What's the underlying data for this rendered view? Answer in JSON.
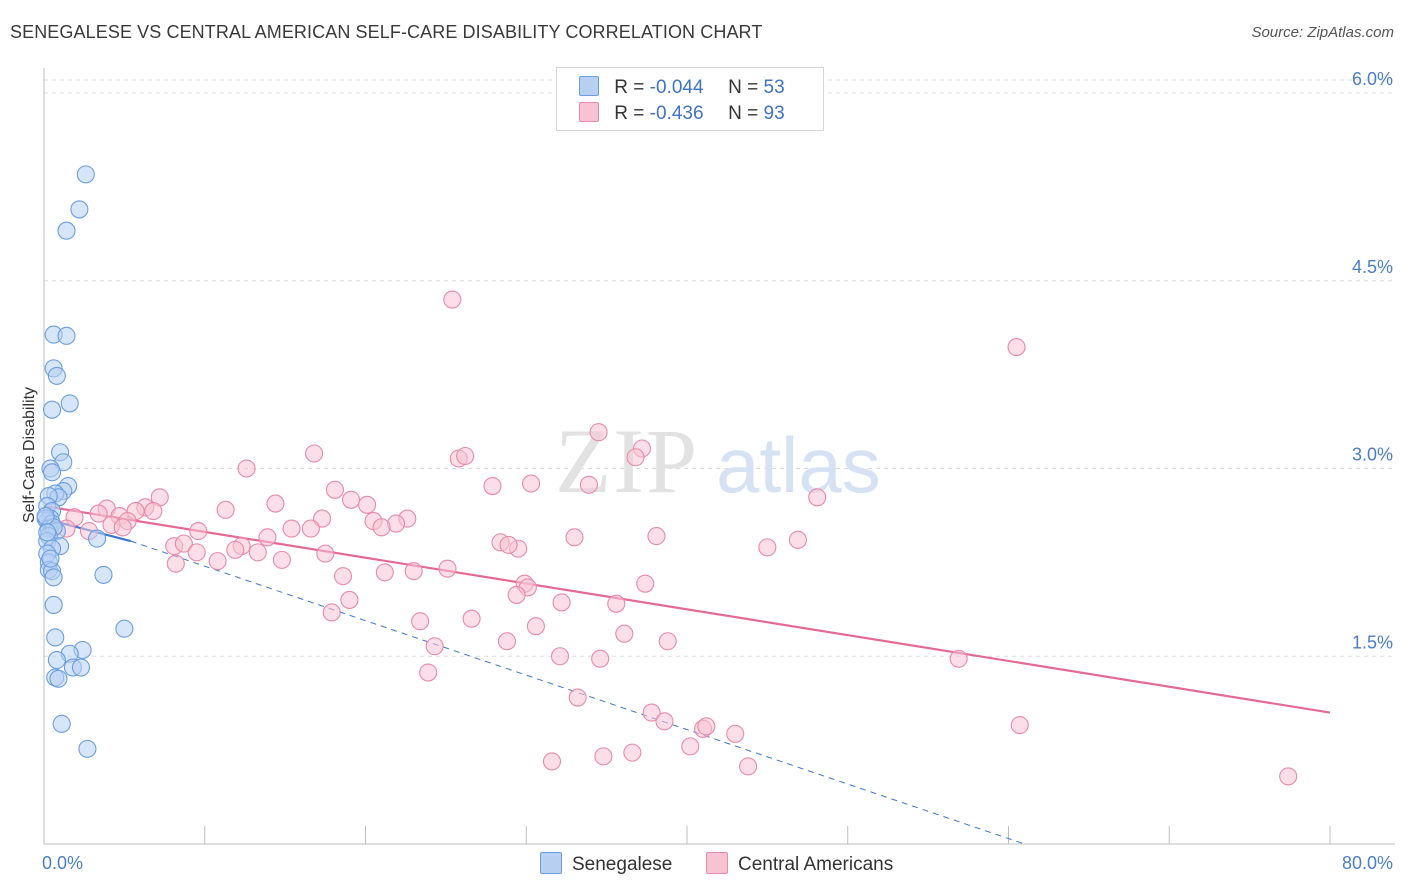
{
  "header": {
    "title": "SENEGALESE VS CENTRAL AMERICAN SELF-CARE DISABILITY CORRELATION CHART",
    "source": "Source: ZipAtlas.com"
  },
  "legend": {
    "rows": [
      {
        "r_label": "R =",
        "r_value": "-0.044",
        "n_label": "N =",
        "n_value": "53"
      },
      {
        "r_label": "R =",
        "r_value": "-0.436",
        "n_label": "N =",
        "n_value": "93"
      }
    ]
  },
  "watermark": {
    "part1": "ZIP",
    "part2": "atlas"
  },
  "colors": {
    "senegalese_fill": "#b7d0f2",
    "senegalese_stroke": "#6a9ee0",
    "senegalese_line": "#3a78d6",
    "central_fill": "#f7c3d3",
    "central_stroke": "#e98aa8",
    "central_line": "#e46a96",
    "grid": "#dcdcdc",
    "axis_text": "#4a7fc8"
  },
  "chart_data": {
    "type": "scatter",
    "ylabel": "Self-Care Disability",
    "xlim": [
      0,
      80
    ],
    "ylim": [
      0,
      6.2
    ],
    "x_tick_labels": [
      "0.0%",
      "80.0%"
    ],
    "y_ticks": [
      {
        "value": 1.5,
        "label": "1.5%"
      },
      {
        "value": 3.0,
        "label": "3.0%"
      },
      {
        "value": 4.5,
        "label": "4.5%"
      },
      {
        "value": 6.0,
        "label": "6.0%"
      }
    ],
    "grid": true,
    "series": [
      {
        "name": "Senegalese",
        "trend": {
          "x": [
            0,
            5.4
          ],
          "y": [
            2.6,
            2.42
          ]
        },
        "trend_ext": {
          "x": [
            5.4,
            61
          ],
          "y": [
            2.42,
            0
          ]
        },
        "points": [
          [
            2.6,
            5.35
          ],
          [
            2.2,
            5.07
          ],
          [
            1.4,
            4.9
          ],
          [
            0.6,
            4.07
          ],
          [
            1.4,
            4.06
          ],
          [
            0.6,
            3.8
          ],
          [
            0.8,
            3.74
          ],
          [
            1.6,
            3.52
          ],
          [
            0.5,
            3.47
          ],
          [
            1.0,
            3.13
          ],
          [
            1.2,
            3.05
          ],
          [
            0.4,
            3.0
          ],
          [
            0.5,
            2.97
          ],
          [
            1.5,
            2.86
          ],
          [
            1.2,
            2.82
          ],
          [
            0.7,
            2.8
          ],
          [
            0.9,
            2.77
          ],
          [
            0.3,
            2.78
          ],
          [
            0.2,
            2.7
          ],
          [
            0.5,
            2.66
          ],
          [
            0.4,
            2.6
          ],
          [
            0.2,
            2.58
          ],
          [
            0.1,
            2.6
          ],
          [
            0.5,
            2.56
          ],
          [
            0.3,
            2.52
          ],
          [
            0.8,
            2.5
          ],
          [
            0.6,
            2.53
          ],
          [
            0.3,
            2.46
          ],
          [
            3.3,
            2.44
          ],
          [
            0.2,
            2.42
          ],
          [
            1.0,
            2.38
          ],
          [
            0.5,
            2.36
          ],
          [
            0.2,
            2.32
          ],
          [
            0.3,
            2.25
          ],
          [
            0.3,
            2.19
          ],
          [
            0.5,
            2.18
          ],
          [
            0.6,
            2.13
          ],
          [
            3.7,
            2.15
          ],
          [
            0.6,
            1.91
          ],
          [
            5.0,
            1.72
          ],
          [
            0.7,
            1.65
          ],
          [
            2.4,
            1.55
          ],
          [
            1.6,
            1.52
          ],
          [
            0.8,
            1.47
          ],
          [
            1.8,
            1.41
          ],
          [
            2.3,
            1.41
          ],
          [
            0.7,
            1.33
          ],
          [
            0.9,
            1.32
          ],
          [
            1.1,
            0.96
          ],
          [
            2.7,
            0.76
          ],
          [
            0.1,
            2.62
          ],
          [
            0.2,
            2.49
          ],
          [
            0.4,
            2.28
          ]
        ]
      },
      {
        "name": "Central Americans",
        "trend": {
          "x": [
            0,
            80
          ],
          "y": [
            2.7,
            1.05
          ]
        },
        "points": [
          [
            25.4,
            4.35
          ],
          [
            60.5,
            3.97
          ],
          [
            34.5,
            3.29
          ],
          [
            37.2,
            3.16
          ],
          [
            16.8,
            3.12
          ],
          [
            25.8,
            3.08
          ],
          [
            26.2,
            3.1
          ],
          [
            36.8,
            3.09
          ],
          [
            12.6,
            3.0
          ],
          [
            30.3,
            2.88
          ],
          [
            27.9,
            2.86
          ],
          [
            33.9,
            2.87
          ],
          [
            18.1,
            2.83
          ],
          [
            7.2,
            2.77
          ],
          [
            48.1,
            2.77
          ],
          [
            19.1,
            2.75
          ],
          [
            14.4,
            2.72
          ],
          [
            20.1,
            2.71
          ],
          [
            3.9,
            2.68
          ],
          [
            6.3,
            2.69
          ],
          [
            11.3,
            2.67
          ],
          [
            5.7,
            2.66
          ],
          [
            6.8,
            2.66
          ],
          [
            1.9,
            2.61
          ],
          [
            4.7,
            2.62
          ],
          [
            3.4,
            2.64
          ],
          [
            5.2,
            2.58
          ],
          [
            22.6,
            2.6
          ],
          [
            20.5,
            2.58
          ],
          [
            17.3,
            2.6
          ],
          [
            21.9,
            2.56
          ],
          [
            4.2,
            2.55
          ],
          [
            4.9,
            2.53
          ],
          [
            15.4,
            2.52
          ],
          [
            16.6,
            2.52
          ],
          [
            21.0,
            2.53
          ],
          [
            9.6,
            2.5
          ],
          [
            2.8,
            2.5
          ],
          [
            1.4,
            2.52
          ],
          [
            13.9,
            2.45
          ],
          [
            28.4,
            2.41
          ],
          [
            33.0,
            2.45
          ],
          [
            38.1,
            2.46
          ],
          [
            46.9,
            2.43
          ],
          [
            8.1,
            2.38
          ],
          [
            8.7,
            2.4
          ],
          [
            12.3,
            2.38
          ],
          [
            11.9,
            2.35
          ],
          [
            13.3,
            2.33
          ],
          [
            9.5,
            2.33
          ],
          [
            29.5,
            2.36
          ],
          [
            28.9,
            2.39
          ],
          [
            45.0,
            2.37
          ],
          [
            17.5,
            2.32
          ],
          [
            8.2,
            2.24
          ],
          [
            10.8,
            2.26
          ],
          [
            14.8,
            2.27
          ],
          [
            25.1,
            2.2
          ],
          [
            21.2,
            2.17
          ],
          [
            23.0,
            2.18
          ],
          [
            18.6,
            2.14
          ],
          [
            29.9,
            2.08
          ],
          [
            30.1,
            2.05
          ],
          [
            37.4,
            2.08
          ],
          [
            19.0,
            1.95
          ],
          [
            32.2,
            1.93
          ],
          [
            29.4,
            1.99
          ],
          [
            35.6,
            1.92
          ],
          [
            17.9,
            1.85
          ],
          [
            23.4,
            1.78
          ],
          [
            26.6,
            1.8
          ],
          [
            30.6,
            1.74
          ],
          [
            36.1,
            1.68
          ],
          [
            24.3,
            1.58
          ],
          [
            28.8,
            1.62
          ],
          [
            38.8,
            1.62
          ],
          [
            32.1,
            1.5
          ],
          [
            34.6,
            1.48
          ],
          [
            23.9,
            1.37
          ],
          [
            56.9,
            1.48
          ],
          [
            33.2,
            1.17
          ],
          [
            37.8,
            1.05
          ],
          [
            38.6,
            0.98
          ],
          [
            41.0,
            0.92
          ],
          [
            41.2,
            0.94
          ],
          [
            43.0,
            0.88
          ],
          [
            40.2,
            0.78
          ],
          [
            31.6,
            0.66
          ],
          [
            34.8,
            0.7
          ],
          [
            36.6,
            0.73
          ],
          [
            43.8,
            0.62
          ],
          [
            60.7,
            0.95
          ],
          [
            77.4,
            0.54
          ]
        ]
      }
    ]
  },
  "bottom_legend": [
    {
      "label": "Senegalese"
    },
    {
      "label": "Central Americans"
    }
  ]
}
